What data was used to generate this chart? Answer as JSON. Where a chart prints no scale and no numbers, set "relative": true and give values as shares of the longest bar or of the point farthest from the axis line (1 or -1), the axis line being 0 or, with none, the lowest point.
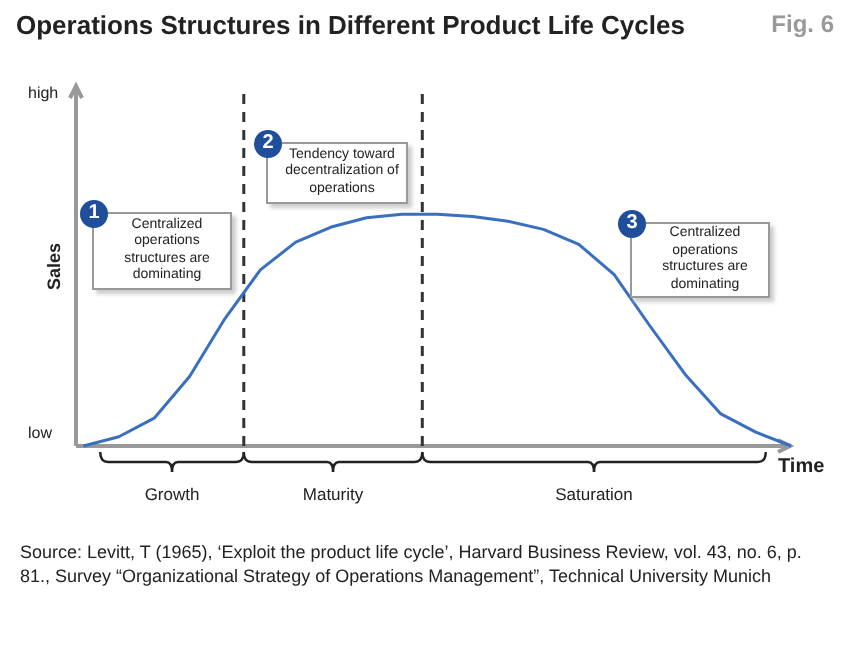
{
  "chart_data": {
    "type": "line",
    "title": "Operations Structures in Different Product Life Cycles",
    "xlabel": "Time",
    "ylabel": "Sales",
    "relative": true,
    "marker": "none",
    "line_style": "solid",
    "categories": [
      null,
      null,
      null,
      null,
      null,
      null,
      null,
      null,
      null,
      null,
      null,
      null,
      null,
      null,
      null,
      null,
      null,
      null,
      null,
      null,
      null
    ],
    "series": [
      {
        "color": "#3a6fc0",
        "values": [
          0,
          0.04,
          0.12,
          0.3,
          0.55,
          0.76,
          0.88,
          0.945,
          0.985,
          1,
          1,
          0.99,
          0.97,
          0.935,
          0.87,
          0.74,
          0.52,
          0.31,
          0.14,
          0.06,
          0
        ]
      }
    ],
    "annotations": [
      "Fig. 6",
      "high",
      "low",
      "1",
      "Centralized operations structures are dominating",
      "2",
      "Tendency toward decentralization of operations",
      "3",
      "Centralized operations structures are dominating",
      "Source: Levitt, T (1965), ‘Exploit the product life cycle’, Harvard Business Review, vol. 43, no. 6, p. 81., Survey “Organizational Strategy of Operations Management”, Technical University Munich",
      "Growth",
      "Maturity",
      "Saturation"
    ]
  }
}
